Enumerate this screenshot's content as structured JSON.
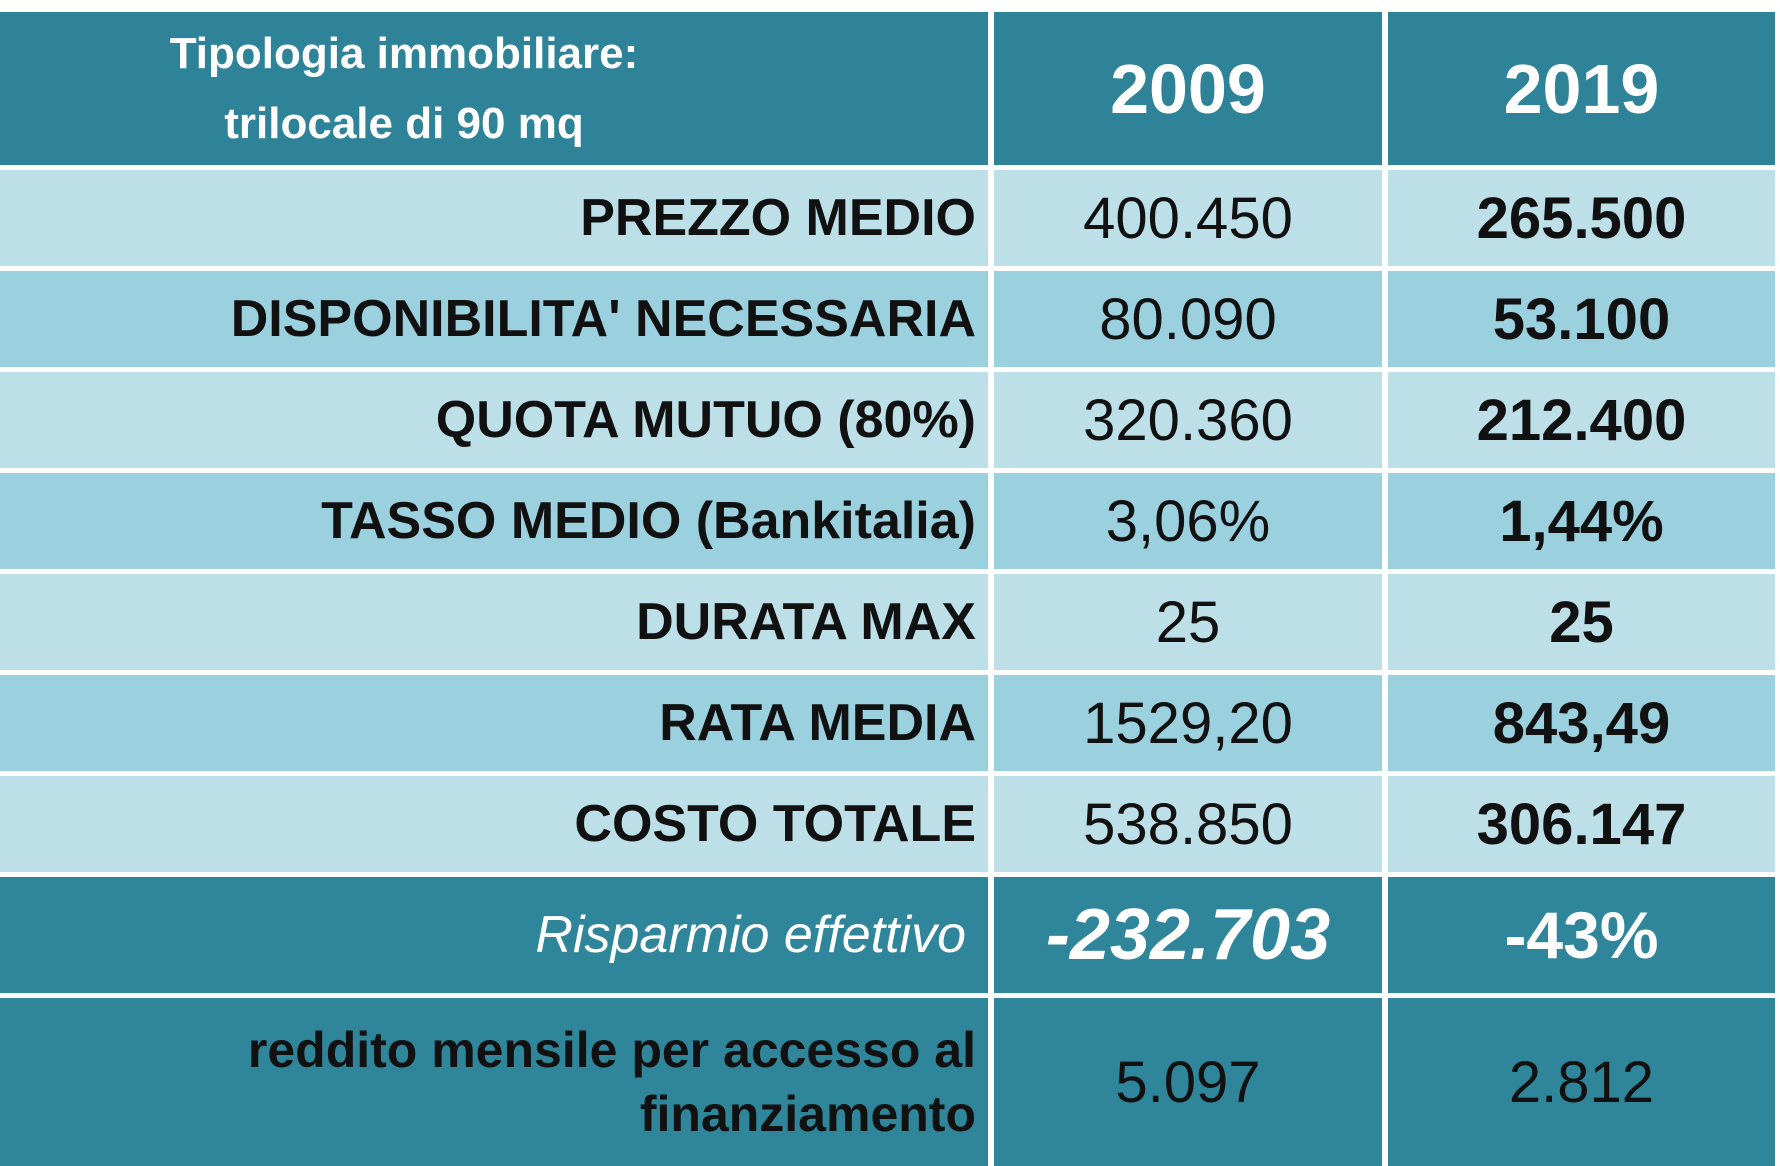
{
  "header": {
    "label_line1": "Tipologia immobiliare:",
    "label_line2": "trilocale di 90 mq",
    "year_a": "2009",
    "year_b": "2019"
  },
  "rows": [
    {
      "label": "PREZZO MEDIO",
      "v2009": "400.450",
      "v2019": "265.500"
    },
    {
      "label": "DISPONIBILITA' NECESSARIA",
      "v2009": "80.090",
      "v2019": "53.100"
    },
    {
      "label": "QUOTA MUTUO (80%)",
      "v2009": "320.360",
      "v2019": "212.400"
    },
    {
      "label": "TASSO MEDIO (Bankitalia)",
      "v2009": "3,06%",
      "v2019": "1,44%"
    },
    {
      "label": "DURATA MAX",
      "v2009": "25",
      "v2019": "25"
    },
    {
      "label": "RATA MEDIA",
      "v2009": "1529,20",
      "v2019": "843,49"
    },
    {
      "label": "COSTO TOTALE",
      "v2009": "538.850",
      "v2019": "306.147"
    }
  ],
  "savings": {
    "label": "Risparmio effettivo",
    "amount": "-232.703",
    "percent": "-43%"
  },
  "income": {
    "label_line1": "reddito mensile per accesso al",
    "label_line2": "finanziamento",
    "v2009": "5.097",
    "v2019": "2.812"
  },
  "colors": {
    "header": "#2e8398",
    "row_light": "#bde0e8",
    "row_mid": "#9bd0de",
    "row_dark": "#2f8599"
  }
}
